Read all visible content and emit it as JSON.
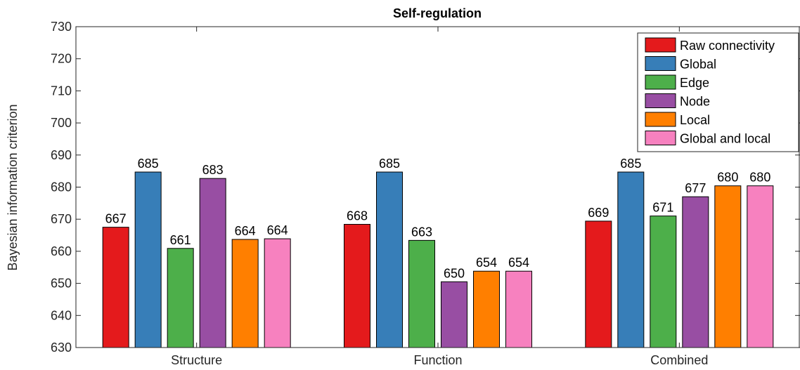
{
  "chart_data": {
    "type": "bar",
    "title": "Self-regulation",
    "xlabel": "",
    "ylabel": "Bayesian information criterion",
    "ylim": [
      630,
      730
    ],
    "yticks": [
      630,
      640,
      650,
      660,
      670,
      680,
      690,
      700,
      710,
      720,
      730
    ],
    "categories": [
      "Structure",
      "Function",
      "Combined"
    ],
    "legend_position": "top-right",
    "grid": false,
    "series": [
      {
        "name": "Raw connectivity",
        "color": "#e41a1c",
        "values": [
          667.5,
          668.4,
          669.4
        ],
        "labels": [
          "667",
          "668",
          "669"
        ]
      },
      {
        "name": "Global",
        "color": "#377eb8",
        "values": [
          684.7,
          684.7,
          684.7
        ],
        "labels": [
          "685",
          "685",
          "685"
        ]
      },
      {
        "name": "Edge",
        "color": "#4daf4a",
        "values": [
          660.9,
          663.4,
          671.0
        ],
        "labels": [
          "661",
          "663",
          "671"
        ]
      },
      {
        "name": "Node",
        "color": "#984ea3",
        "values": [
          682.7,
          650.5,
          677.0
        ],
        "labels": [
          "683",
          "650",
          "677"
        ]
      },
      {
        "name": "Local",
        "color": "#ff7f00",
        "values": [
          663.7,
          653.8,
          680.4
        ],
        "labels": [
          "664",
          "654",
          "680"
        ]
      },
      {
        "name": "Global and local",
        "color": "#f781bf",
        "values": [
          663.9,
          653.8,
          680.4
        ],
        "labels": [
          "664",
          "654",
          "680"
        ]
      }
    ]
  }
}
